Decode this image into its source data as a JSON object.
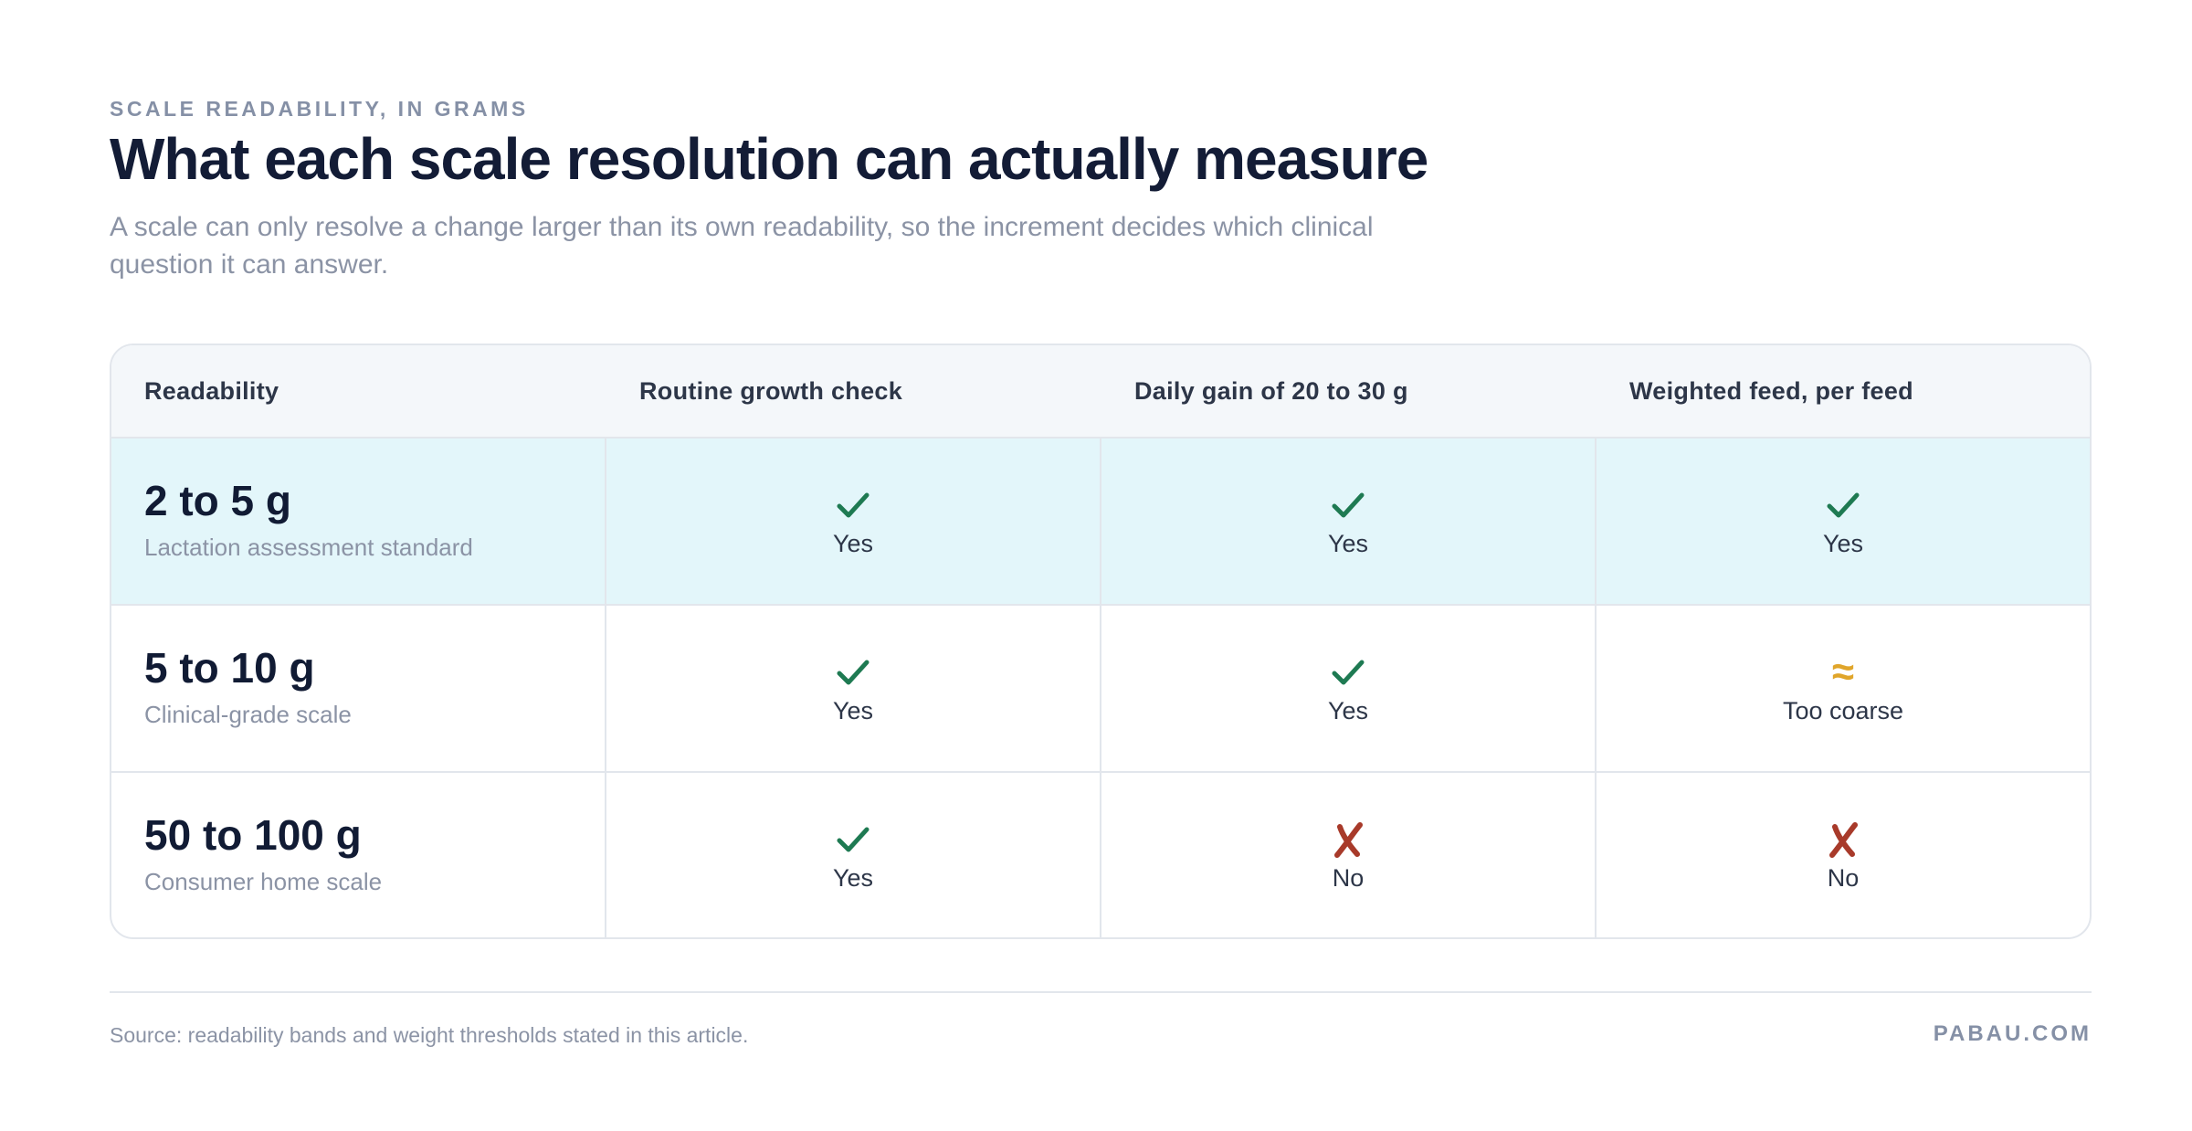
{
  "header": {
    "eyebrow": "SCALE READABILITY, IN GRAMS",
    "title": "What each scale resolution can actually measure",
    "subtitle": "A scale can only resolve a change larger than its own readability, so the increment decides which clinical question it can answer."
  },
  "colors": {
    "yes": "#1e7a52",
    "partial": "#e0a52a",
    "no": "#a83a2a",
    "highlight_row": "#e3f6fa"
  },
  "table": {
    "columns": [
      "Readability",
      "Routine growth check",
      "Daily gain of 20 to 30 g",
      "Weighted feed, per feed"
    ],
    "rows": [
      {
        "range": "2 to 5 g",
        "note": "Lactation assessment standard",
        "highlight": true,
        "cells": [
          {
            "status": "yes",
            "icon": "check-icon",
            "glyph": "✓",
            "label": "Yes"
          },
          {
            "status": "yes",
            "icon": "check-icon",
            "glyph": "✓",
            "label": "Yes"
          },
          {
            "status": "yes",
            "icon": "check-icon",
            "glyph": "✓",
            "label": "Yes"
          }
        ]
      },
      {
        "range": "5 to 10 g",
        "note": "Clinical-grade scale",
        "highlight": false,
        "cells": [
          {
            "status": "yes",
            "icon": "check-icon",
            "glyph": "✓",
            "label": "Yes"
          },
          {
            "status": "yes",
            "icon": "check-icon",
            "glyph": "✓",
            "label": "Yes"
          },
          {
            "status": "partial",
            "icon": "approx-icon",
            "glyph": "≈",
            "label": "Too coarse"
          }
        ]
      },
      {
        "range": "50 to 100 g",
        "note": "Consumer home scale",
        "highlight": false,
        "cells": [
          {
            "status": "yes",
            "icon": "check-icon",
            "glyph": "✓",
            "label": "Yes"
          },
          {
            "status": "no",
            "icon": "cross-icon",
            "glyph": "✗",
            "label": "No"
          },
          {
            "status": "no",
            "icon": "cross-icon",
            "glyph": "✗",
            "label": "No"
          }
        ]
      }
    ]
  },
  "footer": {
    "source": "Source: readability bands and weight thresholds stated in this article.",
    "brand": "PABAU.COM"
  }
}
